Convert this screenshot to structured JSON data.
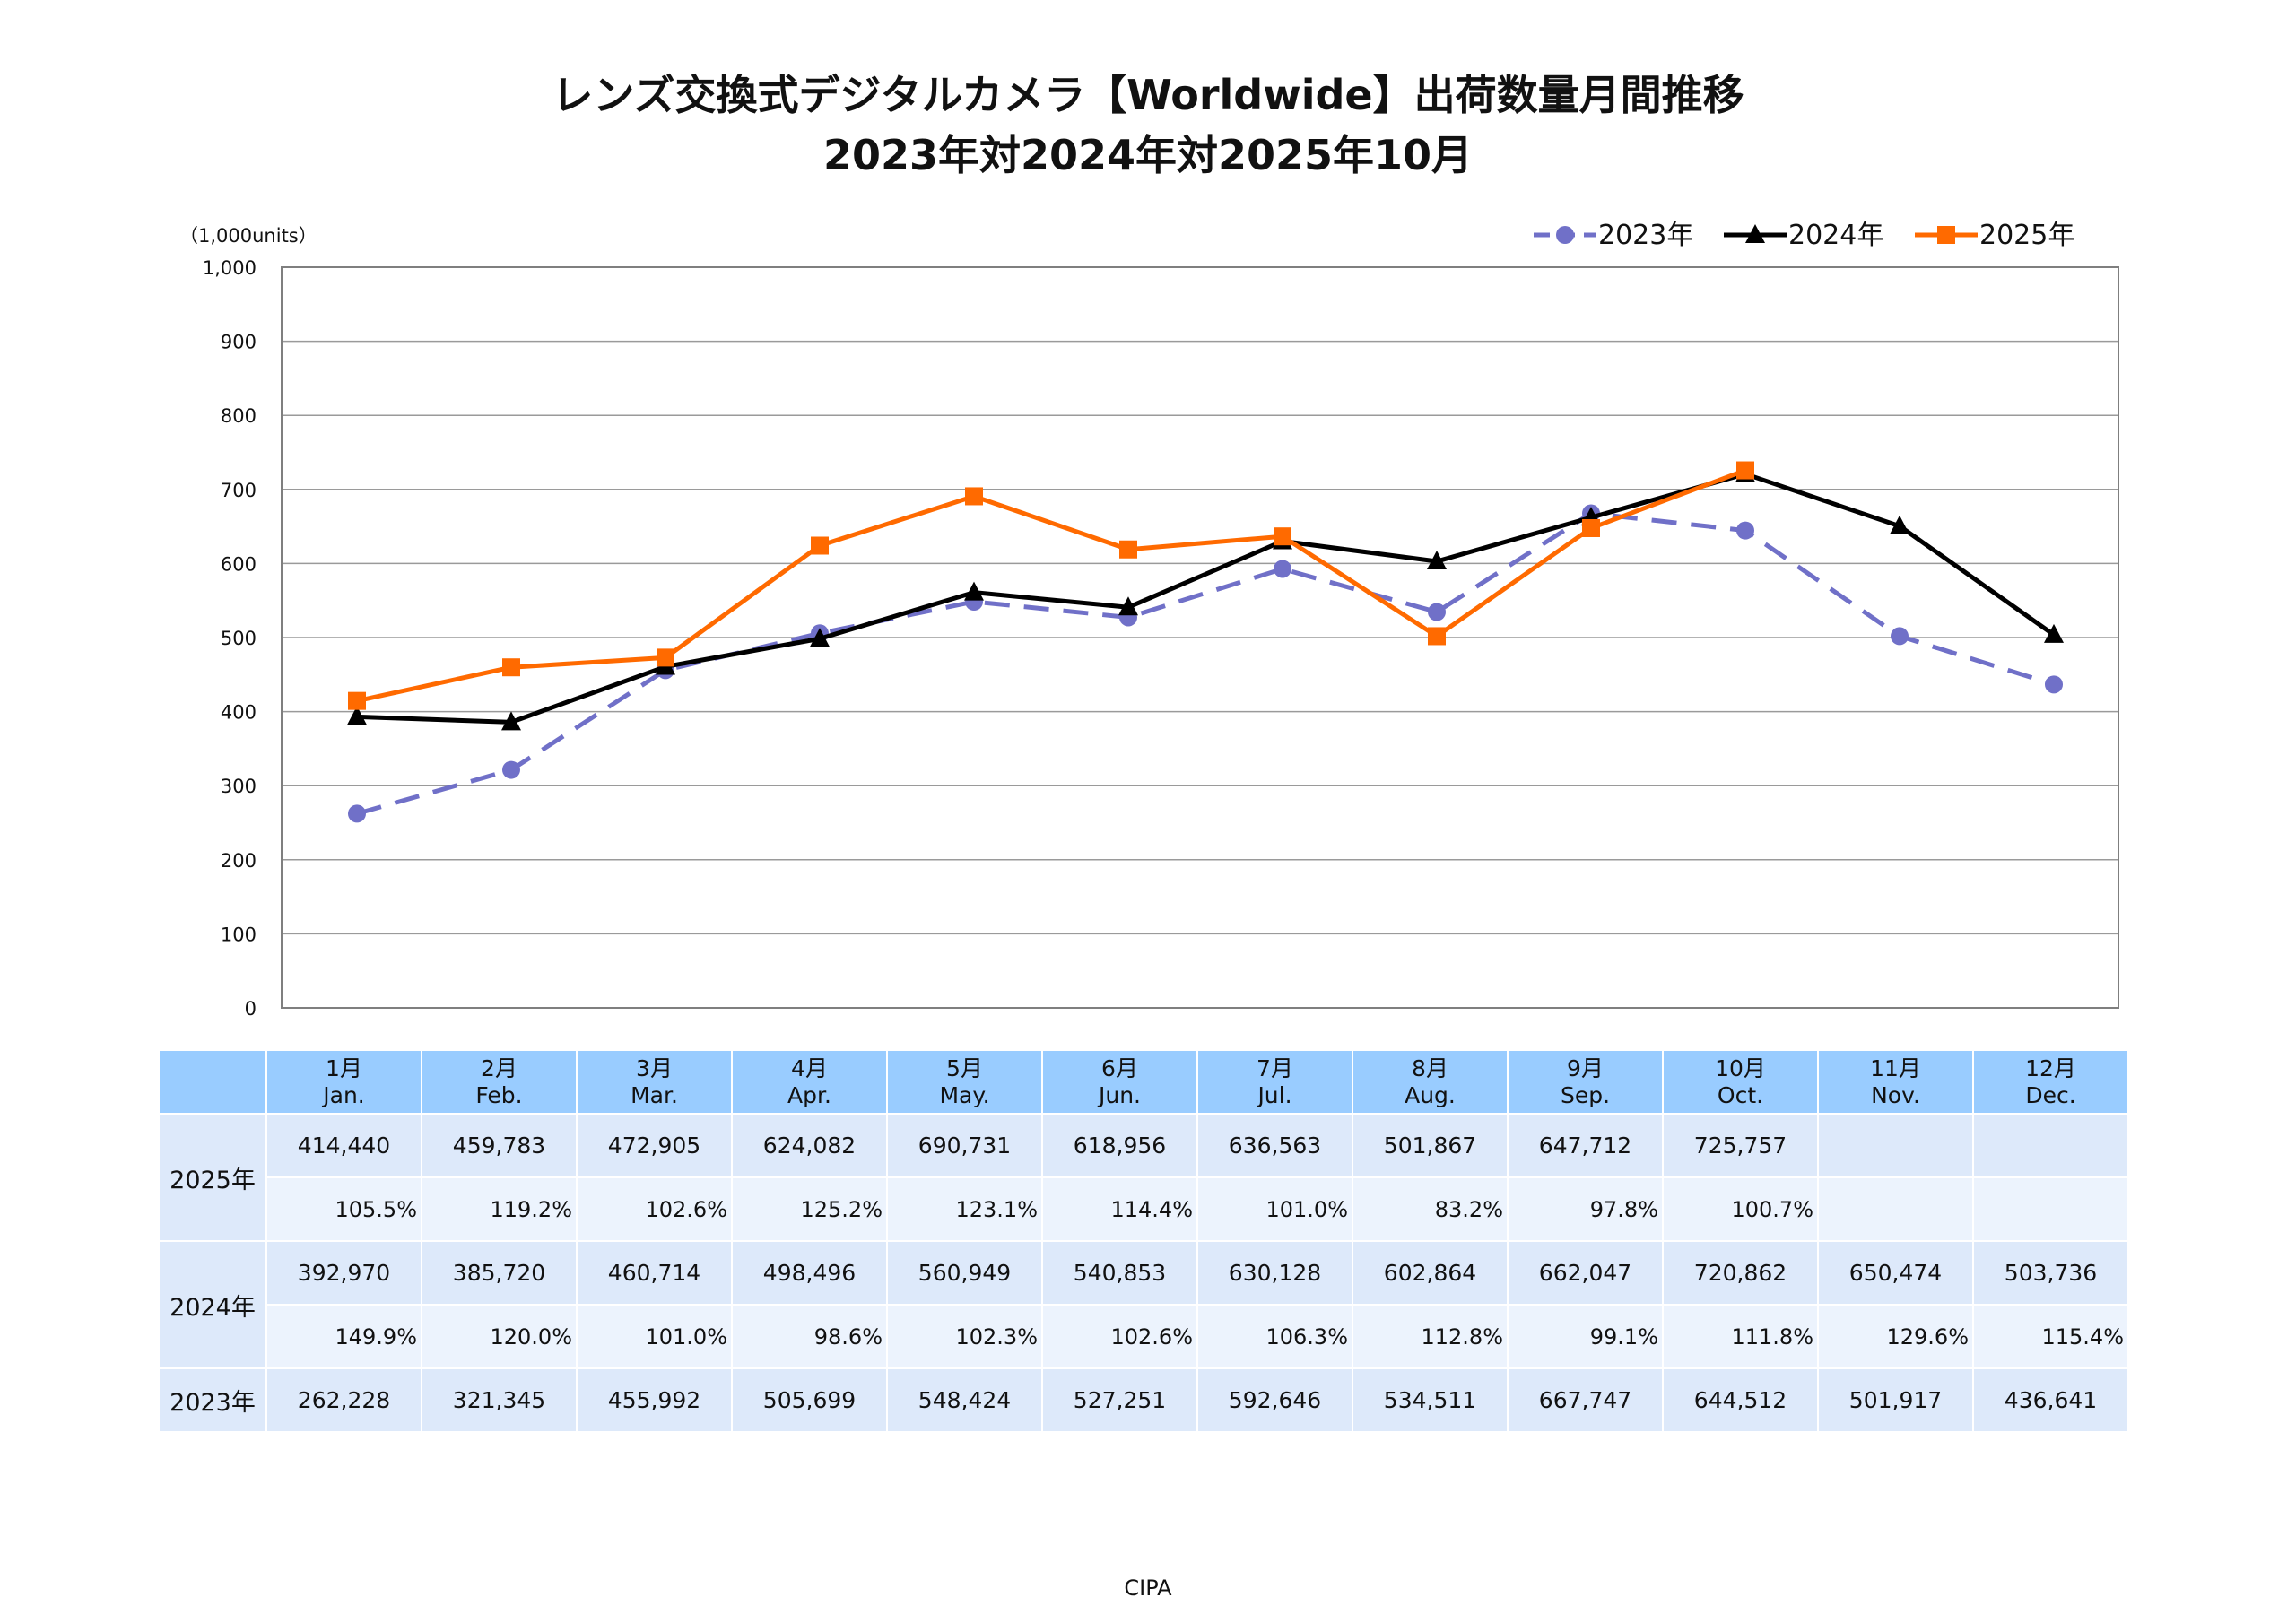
{
  "title_line1": "レンズ交換式デジタルカメラ【Worldwide】出荷数量月間推移",
  "title_line2": "2023年対2024年対2025年10月",
  "footer": "CIPA",
  "chart_data": {
    "type": "line",
    "unit_label": "（1,000units）",
    "ylim": [
      0,
      1000
    ],
    "yticks": [
      0,
      100,
      200,
      300,
      400,
      500,
      600,
      700,
      800,
      900,
      1000
    ],
    "ytick_labels": [
      "0",
      "100",
      "200",
      "300",
      "400",
      "500",
      "600",
      "700",
      "800",
      "900",
      "1,000"
    ],
    "grid": true,
    "legend_position": "top-right",
    "categories": [
      "1月",
      "2月",
      "3月",
      "4月",
      "5月",
      "6月",
      "7月",
      "8月",
      "9月",
      "10月",
      "11月",
      "12月"
    ],
    "categories_en": [
      "Jan.",
      "Feb.",
      "Mar.",
      "Apr.",
      "May.",
      "Jun.",
      "Jul.",
      "Aug.",
      "Sep.",
      "Oct.",
      "Nov.",
      "Dec."
    ],
    "series": [
      {
        "name": "2023年",
        "color": "#7070c8",
        "marker": "circle",
        "dash": true,
        "values": [
          262.228,
          321.345,
          455.992,
          505.699,
          548.424,
          527.251,
          592.646,
          534.511,
          667.747,
          644.512,
          501.917,
          436.641
        ]
      },
      {
        "name": "2024年",
        "color": "#000000",
        "marker": "triangle",
        "dash": false,
        "values": [
          392.97,
          385.72,
          460.714,
          498.496,
          560.949,
          540.853,
          630.128,
          602.864,
          662.047,
          720.862,
          650.474,
          503.736
        ]
      },
      {
        "name": "2025年",
        "color": "#ff6a00",
        "marker": "square",
        "dash": false,
        "values": [
          414.44,
          459.783,
          472.905,
          624.082,
          690.731,
          618.956,
          636.563,
          501.867,
          647.712,
          725.757,
          null,
          null
        ]
      }
    ]
  },
  "table": {
    "rows": {
      "y2025": {
        "label": "2025年",
        "values": [
          "414,440",
          "459,783",
          "472,905",
          "624,082",
          "690,731",
          "618,956",
          "636,563",
          "501,867",
          "647,712",
          "725,757",
          "",
          ""
        ],
        "ratios": [
          "105.5%",
          "119.2%",
          "102.6%",
          "125.2%",
          "123.1%",
          "114.4%",
          "101.0%",
          "83.2%",
          "97.8%",
          "100.7%",
          "",
          ""
        ]
      },
      "y2024": {
        "label": "2024年",
        "values": [
          "392,970",
          "385,720",
          "460,714",
          "498,496",
          "560,949",
          "540,853",
          "630,128",
          "602,864",
          "662,047",
          "720,862",
          "650,474",
          "503,736"
        ],
        "ratios": [
          "149.9%",
          "120.0%",
          "101.0%",
          "98.6%",
          "102.3%",
          "102.6%",
          "106.3%",
          "112.8%",
          "99.1%",
          "111.8%",
          "129.6%",
          "115.4%"
        ]
      },
      "y2023": {
        "label": "2023年",
        "values": [
          "262,228",
          "321,345",
          "455,992",
          "505,699",
          "548,424",
          "527,251",
          "592,646",
          "534,511",
          "667,747",
          "644,512",
          "501,917",
          "436,641"
        ]
      }
    }
  }
}
